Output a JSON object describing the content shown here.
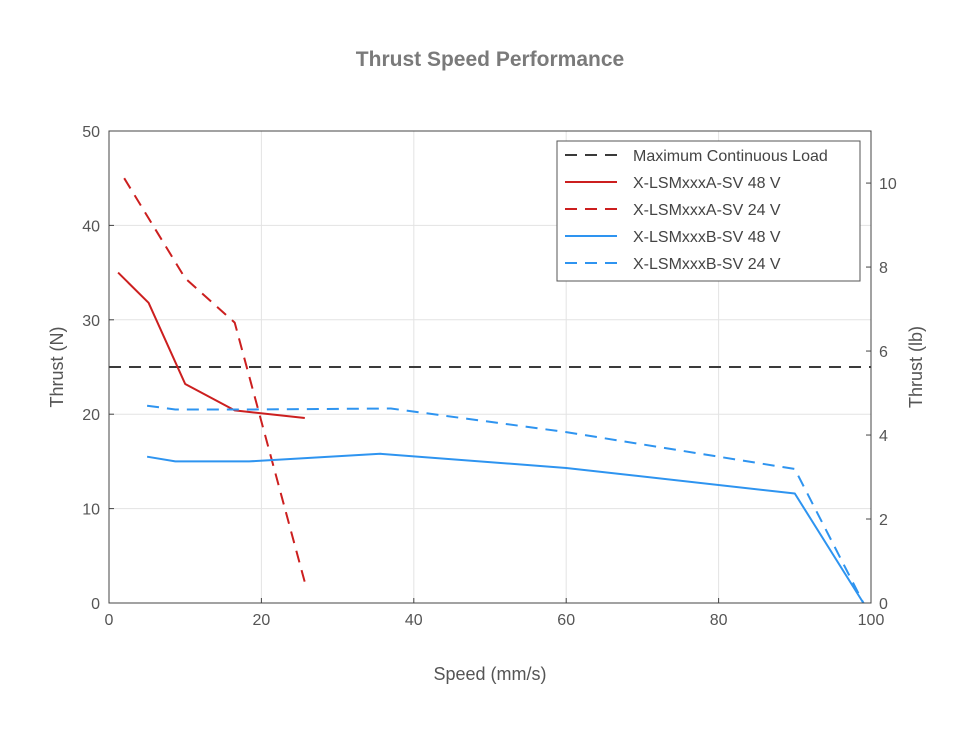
{
  "chart_data": {
    "type": "line",
    "title": "Thrust Speed Performance",
    "xlabel": "Speed (mm/s)",
    "ylabel": "Thrust (N)",
    "y2label": "Thrust (lb)",
    "xlim": [
      0,
      100
    ],
    "ylim": [
      0,
      50
    ],
    "y2lim": [
      0,
      11.24
    ],
    "xticks": [
      0,
      20,
      40,
      60,
      80,
      100
    ],
    "yticks": [
      0,
      10,
      20,
      30,
      40,
      50
    ],
    "y2ticks": [
      0,
      2,
      4,
      6,
      8,
      10
    ],
    "grid": true,
    "legend_position": "top-right",
    "series": [
      {
        "name": "Maximum Continuous Load",
        "color": "#3a3a3a",
        "style": "dashed",
        "x": [
          0,
          100
        ],
        "y": [
          25,
          25
        ]
      },
      {
        "name": "X-LSMxxxA-SV 48 V",
        "color": "#cc1f1f",
        "style": "solid",
        "x": [
          1.2,
          5.2,
          10,
          16.5,
          25.7
        ],
        "y": [
          35,
          31.8,
          23.2,
          20.4,
          19.6
        ]
      },
      {
        "name": "X-LSMxxxA-SV 24 V",
        "color": "#cc1f1f",
        "style": "dashed",
        "x": [
          2,
          10,
          16.5,
          25.7
        ],
        "y": [
          45,
          34.4,
          29.7,
          2.2
        ]
      },
      {
        "name": "X-LSMxxxB-SV 48 V",
        "color": "#2e94f0",
        "style": "solid",
        "x": [
          5,
          8.7,
          18.4,
          35.6,
          60,
          90,
          99
        ],
        "y": [
          15.5,
          15,
          15,
          15.8,
          14.3,
          11.6,
          0
        ]
      },
      {
        "name": "X-LSMxxxB-SV 24 V",
        "color": "#2e94f0",
        "style": "dashed",
        "x": [
          5,
          8.7,
          18.4,
          37,
          60,
          90,
          99
        ],
        "y": [
          20.9,
          20.5,
          20.5,
          20.6,
          18.1,
          14.2,
          0
        ]
      }
    ]
  }
}
